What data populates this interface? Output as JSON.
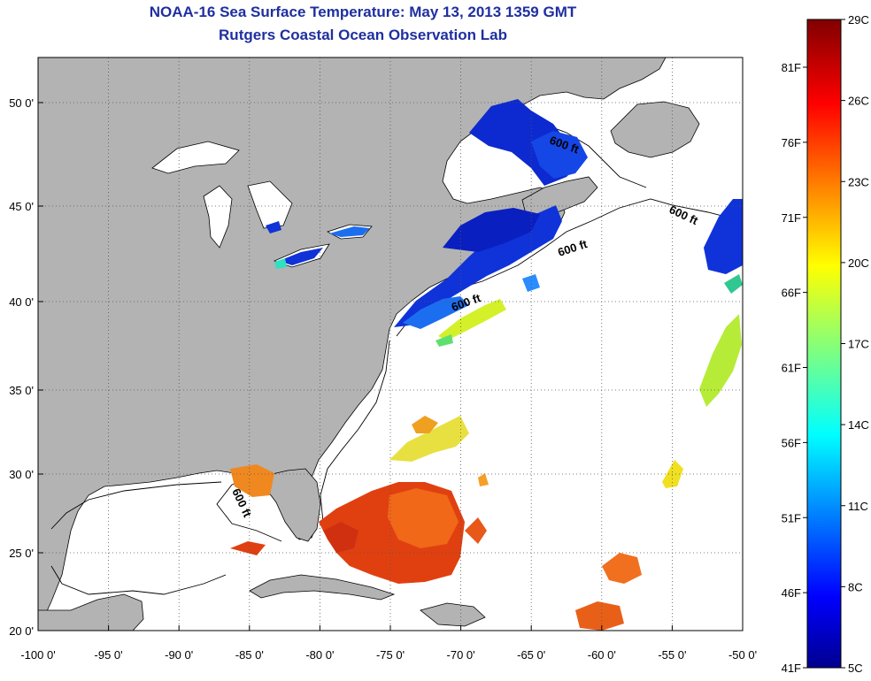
{
  "header": {
    "title": "NOAA-16 Sea Surface Temperature:  May 13, 2013 1359 GMT",
    "subtitle": "Rutgers Coastal Ocean Observation Lab"
  },
  "map": {
    "lon_ticks": [
      "-100 0'",
      "-95 0'",
      "-90 0'",
      "-85 0'",
      "-80 0'",
      "-75 0'",
      "-70 0'",
      "-65 0'",
      "-60 0'",
      "-55 0'",
      "-50 0'"
    ],
    "lat_ticks": [
      "50 0'",
      "45 0'",
      "40 0'",
      "35 0'",
      "30 0'",
      "25 0'",
      "20 0'"
    ],
    "lon_range": [
      -100,
      -50
    ],
    "lat_range": [
      20,
      52
    ],
    "grid": "dotted",
    "land_color": "#b3b3b3",
    "ocean_color": "#ffffff",
    "isobath_labels": [
      "600 ft",
      "600 ft",
      "600 ft",
      "600 ft",
      "600 ft"
    ]
  },
  "colorbar": {
    "celsius_labels": [
      "29C",
      "26C",
      "23C",
      "20C",
      "17C",
      "14C",
      "11C",
      "8C",
      "5C"
    ],
    "fahrenheit_labels": [
      "81F",
      "76F",
      "71F",
      "66F",
      "61F",
      "56F",
      "51F",
      "46F",
      "41F"
    ],
    "colormap": "jet",
    "range_celsius": [
      5,
      29
    ]
  }
}
